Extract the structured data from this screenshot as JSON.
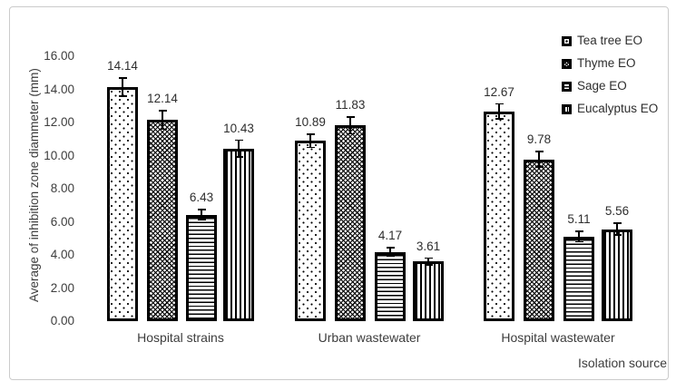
{
  "figure": {
    "background_color": "#ffffff",
    "border_color": "#cbcbcb",
    "bar_outline_color": "#000000",
    "text_color": "#3d3d3d"
  },
  "chart_data": {
    "type": "bar",
    "title": "",
    "xlabel": "Isolation source",
    "ylabel": "Average of inhibition zone diammeter (mm)",
    "ylim": [
      0,
      16
    ],
    "ytick_step": 2,
    "y_ticks": [
      "0.00",
      "2.00",
      "4.00",
      "6.00",
      "8.00",
      "10.00",
      "12.00",
      "14.00",
      "16.00"
    ],
    "grid": false,
    "legend_position": "right",
    "value_labels_shown": true,
    "error_bars_shown": true,
    "categories": [
      "Hospital strains",
      "Urban wastewater",
      "Hospital wastewater"
    ],
    "series": [
      {
        "name": "Tea tree EO",
        "pattern": "dots",
        "values": [
          14.14,
          10.89,
          12.67
        ],
        "errors": [
          0.6,
          0.45,
          0.5
        ]
      },
      {
        "name": "Thyme EO",
        "pattern": "diamond-crosshatch",
        "values": [
          12.14,
          11.83,
          9.78
        ],
        "errors": [
          0.6,
          0.55,
          0.5
        ]
      },
      {
        "name": "Sage EO",
        "pattern": "horizontal-lines",
        "values": [
          6.43,
          4.17,
          5.11
        ],
        "errors": [
          0.35,
          0.3,
          0.35
        ]
      },
      {
        "name": "Eucalyptus EO",
        "pattern": "vertical-lines",
        "values": [
          10.43,
          3.61,
          5.56
        ],
        "errors": [
          0.55,
          0.25,
          0.4
        ]
      }
    ]
  }
}
